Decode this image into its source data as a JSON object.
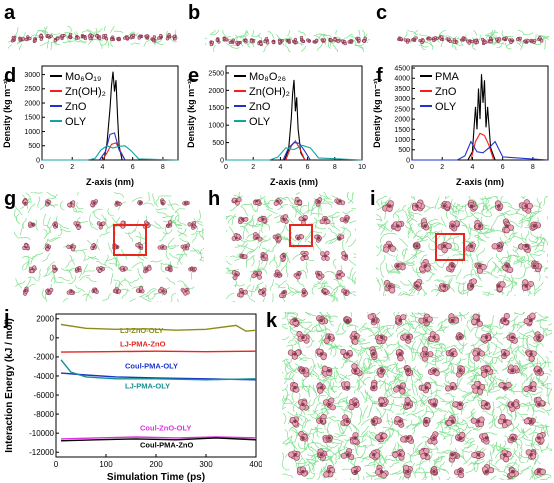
{
  "panels": {
    "a": "a",
    "b": "b",
    "c": "c",
    "d": "d",
    "e": "e",
    "f": "f",
    "g": "g",
    "h": "h",
    "i": "i",
    "j": "j",
    "k": "k"
  },
  "colors": {
    "chain": "#7ee08c",
    "core_pink": "#e6a2b2",
    "core_dark": "#8a3b52",
    "series_black": "#000000",
    "series_red": "#ff1a1a",
    "series_blue": "#2233cc",
    "series_teal": "#14a3a3",
    "highlight_box": "#e8251e",
    "lj_zno_oly": "#8c8c1a",
    "lj_pma_zno": "#e8251e",
    "coul_pma_oly": "#1a33cc",
    "lj_pma_oly": "#149090",
    "coul_zno_oly": "#e030e0",
    "coul_pma_zno": "#000000"
  },
  "density_plots": [
    {
      "panel": "d",
      "ylabel": "Density (kg m⁻³)",
      "xlabel": "Z-axis (nm)",
      "xticks": [
        "0",
        "2",
        "4",
        "6",
        "8"
      ],
      "yticks": [
        "0",
        "500",
        "1000",
        "1500",
        "2000",
        "2500",
        "3000"
      ],
      "legend": [
        "Mo₆O₁₉",
        "Zn(OH)₂",
        "ZnO",
        "OLY"
      ]
    },
    {
      "panel": "e",
      "ylabel": "Density (kg m⁻³)",
      "xlabel": "Z-axis (nm)",
      "xticks": [
        "0",
        "2",
        "4",
        "6",
        "8",
        "10"
      ],
      "yticks": [
        "0",
        "500",
        "1000",
        "1500",
        "2000",
        "2500"
      ],
      "legend": [
        "Mo₈O₂₆",
        "Zn(OH)₂",
        "ZnO",
        "OLY"
      ]
    },
    {
      "panel": "f",
      "ylabel": "Density (kg m⁻³)",
      "xlabel": "Z-axis (nm)",
      "xticks": [
        "0",
        "2",
        "4",
        "6",
        "8"
      ],
      "yticks": [
        "0",
        "500",
        "1000",
        "1500",
        "2000",
        "2500",
        "3000",
        "3500",
        "4000",
        "4500"
      ],
      "legend": [
        "PMA",
        "ZnO",
        "OLY"
      ]
    }
  ],
  "energy_plot": {
    "ylabel": "Interaction Energy (kJ / mol)",
    "xlabel": "Simulation Time (ps)",
    "xticks": [
      "0",
      "100",
      "200",
      "300",
      "400"
    ],
    "yticks": [
      "2000",
      "0",
      "-2000",
      "-4000",
      "-6000",
      "-8000",
      "-10000",
      "-12000"
    ],
    "labels": {
      "lj_zno_oly": "LJ-ZnO-OLY",
      "lj_pma_zno": "LJ-PMA-ZnO",
      "coul_pma_oly": "Coul-PMA-OLY",
      "lj_pma_oly": "LJ-PMA-OLY",
      "coul_zno_oly": "Coul-ZnO-OLY",
      "coul_pma_zno": "Coul-PMA-ZnO"
    }
  },
  "chart_data": [
    {
      "type": "line",
      "title": "",
      "xlabel": "Z-axis (nm)",
      "ylabel": "Density (kg m⁻³)",
      "xlim": [
        0,
        9
      ],
      "ylim": [
        0,
        3300
      ],
      "series": [
        {
          "name": "Mo₆O₁₉",
          "x": [
            4.1,
            4.3,
            4.5,
            4.6,
            4.7,
            4.8,
            4.9,
            5.0,
            5.1,
            5.3
          ],
          "y": [
            0,
            600,
            1800,
            2600,
            3100,
            2400,
            2800,
            1500,
            500,
            0
          ]
        },
        {
          "name": "Zn(OH)₂",
          "x": [
            4.0,
            4.3,
            4.6,
            4.9,
            5.2,
            5.5
          ],
          "y": [
            0,
            250,
            550,
            600,
            300,
            0
          ]
        },
        {
          "name": "ZnO",
          "x": [
            3.8,
            4.2,
            4.5,
            4.8,
            5.1,
            5.5
          ],
          "y": [
            0,
            300,
            900,
            950,
            350,
            0
          ]
        },
        {
          "name": "OLY",
          "x": [
            0,
            3.0,
            3.5,
            3.9,
            4.3,
            4.7,
            5.1,
            5.5,
            5.9,
            6.4,
            9.0
          ],
          "y": [
            0,
            0,
            50,
            350,
            500,
            420,
            480,
            500,
            320,
            40,
            0
          ]
        }
      ]
    },
    {
      "type": "line",
      "title": "",
      "xlabel": "Z-axis (nm)",
      "ylabel": "Density (kg m⁻³)",
      "xlim": [
        0,
        10
      ],
      "ylim": [
        0,
        2700
      ],
      "series": [
        {
          "name": "Mo₈O₂₆",
          "x": [
            4.3,
            4.6,
            4.8,
            4.9,
            5.0,
            5.1,
            5.2,
            5.3,
            5.5,
            5.8
          ],
          "y": [
            0,
            300,
            1200,
            1900,
            2300,
            1400,
            1800,
            900,
            200,
            0
          ]
        },
        {
          "name": "Zn(OH)₂",
          "x": [
            4.4,
            4.8,
            5.1,
            5.4,
            5.8
          ],
          "y": [
            0,
            400,
            550,
            350,
            0
          ]
        },
        {
          "name": "ZnO",
          "x": [
            4.2,
            4.6,
            5.0,
            5.4,
            5.8,
            6.2
          ],
          "y": [
            0,
            350,
            500,
            480,
            250,
            0
          ]
        },
        {
          "name": "OLY",
          "x": [
            0,
            3.2,
            3.8,
            4.4,
            5.0,
            5.6,
            6.2,
            6.8,
            10.0
          ],
          "y": [
            0,
            0,
            80,
            350,
            300,
            420,
            350,
            60,
            0
          ]
        }
      ]
    },
    {
      "type": "line",
      "title": "",
      "xlabel": "Z-axis (nm)",
      "ylabel": "Density (kg m⁻³)",
      "xlim": [
        0,
        9
      ],
      "ylim": [
        0,
        4600
      ],
      "series": [
        {
          "name": "PMA",
          "x": [
            3.7,
            4.0,
            4.2,
            4.3,
            4.4,
            4.5,
            4.6,
            4.7,
            4.8,
            4.9,
            5.0,
            5.2,
            5.5
          ],
          "y": [
            0,
            400,
            2600,
            1500,
            3500,
            2000,
            4200,
            2800,
            3900,
            1600,
            2600,
            600,
            0
          ]
        },
        {
          "name": "ZnO",
          "x": [
            3.9,
            4.2,
            4.5,
            4.8,
            5.1,
            5.4
          ],
          "y": [
            0,
            900,
            1300,
            1200,
            700,
            0
          ]
        },
        {
          "name": "OLY",
          "x": [
            0,
            3.0,
            3.5,
            3.9,
            4.3,
            4.7,
            5.1,
            5.5,
            6.0,
            9.0
          ],
          "y": [
            0,
            0,
            200,
            900,
            400,
            350,
            600,
            900,
            150,
            0
          ]
        }
      ]
    },
    {
      "type": "line",
      "title": "",
      "xlabel": "Simulation Time (ps)",
      "ylabel": "Interaction Energy (kJ / mol)",
      "xlim": [
        0,
        400
      ],
      "ylim": [
        -12500,
        2500
      ],
      "series": [
        {
          "name": "LJ-ZnO-OLY",
          "x": [
            10,
            60,
            120,
            180,
            240,
            300,
            360,
            380,
            400
          ],
          "y": [
            1400,
            1000,
            900,
            950,
            800,
            900,
            1300,
            700,
            800
          ]
        },
        {
          "name": "LJ-PMA-ZnO",
          "x": [
            10,
            100,
            200,
            300,
            400
          ],
          "y": [
            -1500,
            -1450,
            -1400,
            -1450,
            -1400
          ]
        },
        {
          "name": "Coul-PMA-OLY",
          "x": [
            10,
            60,
            120,
            200,
            300,
            400
          ],
          "y": [
            -3700,
            -3900,
            -4100,
            -4200,
            -4300,
            -4400
          ]
        },
        {
          "name": "LJ-PMA-OLY",
          "x": [
            10,
            30,
            60,
            120,
            200,
            300,
            400
          ],
          "y": [
            -2300,
            -3600,
            -4100,
            -4300,
            -4300,
            -4400,
            -4300
          ]
        },
        {
          "name": "Coul-ZnO-OLY",
          "x": [
            10,
            80,
            160,
            240,
            320,
            400
          ],
          "y": [
            -10600,
            -10500,
            -10400,
            -10500,
            -10400,
            -10500
          ]
        },
        {
          "name": "Coul-PMA-ZnO",
          "x": [
            10,
            80,
            160,
            240,
            320,
            400
          ],
          "y": [
            -10800,
            -10700,
            -10600,
            -10700,
            -10500,
            -10700
          ]
        }
      ]
    }
  ]
}
